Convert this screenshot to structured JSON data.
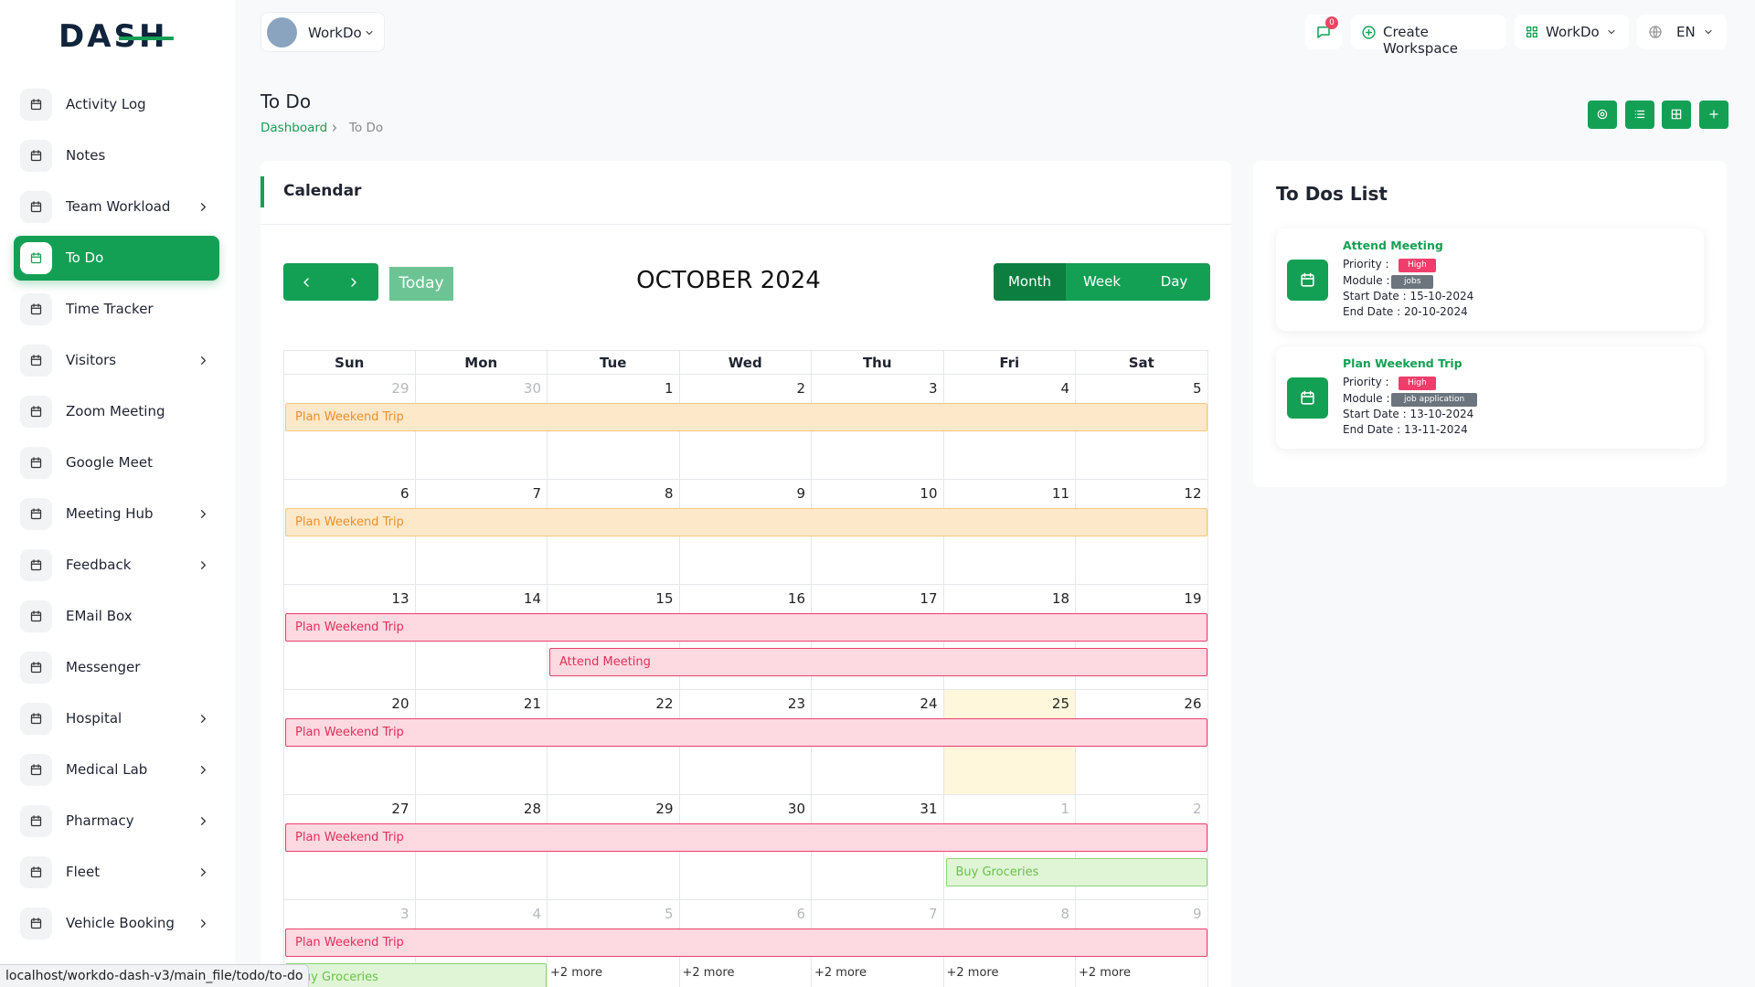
{
  "brand": "DASH",
  "sidebar": [
    {
      "label": "Activity Log",
      "has_children": false
    },
    {
      "label": "Notes",
      "has_children": false
    },
    {
      "label": "Team Workload",
      "has_children": true
    },
    {
      "label": "To Do",
      "has_children": false,
      "active": true
    },
    {
      "label": "Time Tracker",
      "has_children": false
    },
    {
      "label": "Visitors",
      "has_children": true
    },
    {
      "label": "Zoom Meeting",
      "has_children": false
    },
    {
      "label": "Google Meet",
      "has_children": false
    },
    {
      "label": "Meeting Hub",
      "has_children": true
    },
    {
      "label": "Feedback",
      "has_children": true
    },
    {
      "label": "EMail Box",
      "has_children": false
    },
    {
      "label": "Messenger",
      "has_children": false
    },
    {
      "label": "Hospital",
      "has_children": true
    },
    {
      "label": "Medical Lab",
      "has_children": true
    },
    {
      "label": "Pharmacy",
      "has_children": true
    },
    {
      "label": "Fleet",
      "has_children": true
    },
    {
      "label": "Vehicle Booking",
      "has_children": true
    }
  ],
  "header": {
    "workspace": "WorkDo",
    "notifications": "0",
    "create_workspace": "Create Workspace",
    "user_workspace": "WorkDo",
    "language": "EN"
  },
  "page": {
    "title": "To Do",
    "breadcrumb": [
      "Dashboard",
      "To Do"
    ]
  },
  "calendar": {
    "title": "Calendar",
    "today": "Today",
    "month": "OCTOBER 2024",
    "views": [
      "Month",
      "Week",
      "Day"
    ],
    "active_view": 0,
    "weekdays": [
      "Sun",
      "Mon",
      "Tue",
      "Wed",
      "Thu",
      "Fri",
      "Sat"
    ],
    "weeks": [
      {
        "days": [
          29,
          30,
          1,
          2,
          3,
          4,
          5
        ],
        "other": [
          true,
          true,
          false,
          false,
          false,
          false,
          false
        ],
        "events": [
          {
            "label": "Plan Weekend Trip",
            "span": [
              0,
              6
            ],
            "kind": "orange"
          }
        ]
      },
      {
        "days": [
          6,
          7,
          8,
          9,
          10,
          11,
          12
        ],
        "other": [
          false,
          false,
          false,
          false,
          false,
          false,
          false
        ],
        "events": [
          {
            "label": "Plan Weekend Trip",
            "span": [
              0,
              6
            ],
            "kind": "orange"
          }
        ]
      },
      {
        "days": [
          13,
          14,
          15,
          16,
          17,
          18,
          19
        ],
        "other": [
          false,
          false,
          false,
          false,
          false,
          false,
          false
        ],
        "events": [
          {
            "label": "Plan Weekend Trip",
            "span": [
              0,
              6
            ],
            "kind": "pink"
          },
          {
            "label": "Attend Meeting",
            "span": [
              2,
              6
            ],
            "kind": "pink"
          }
        ]
      },
      {
        "days": [
          20,
          21,
          22,
          23,
          24,
          25,
          26
        ],
        "other": [
          false,
          false,
          false,
          false,
          false,
          false,
          false
        ],
        "today": 5,
        "events": [
          {
            "label": "Plan Weekend Trip",
            "span": [
              0,
              6
            ],
            "kind": "pink"
          }
        ]
      },
      {
        "days": [
          27,
          28,
          29,
          30,
          31,
          1,
          2
        ],
        "other": [
          false,
          false,
          false,
          false,
          false,
          true,
          true
        ],
        "events": [
          {
            "label": "Plan Weekend Trip",
            "span": [
              0,
              6
            ],
            "kind": "pink"
          },
          {
            "label": "Buy Groceries",
            "span": [
              5,
              6
            ],
            "kind": "green"
          }
        ]
      },
      {
        "days": [
          3,
          4,
          5,
          6,
          7,
          8,
          9
        ],
        "other": [
          true,
          true,
          true,
          true,
          true,
          true,
          true
        ],
        "events": [
          {
            "label": "Plan Weekend Trip",
            "span": [
              0,
              6
            ],
            "kind": "pink"
          },
          {
            "label": "Buy Groceries",
            "span": [
              0,
              1
            ],
            "kind": "green"
          }
        ],
        "more": [
          null,
          null,
          "+2 more",
          "+2 more",
          "+2 more",
          "+2 more",
          "+2 more"
        ]
      }
    ]
  },
  "todo_list": {
    "title": "To Dos List",
    "items": [
      {
        "title": "Attend Meeting",
        "priority_label": "Priority :",
        "priority": "High",
        "module_label": "Module :",
        "module": "jobs",
        "start": "Start Date : 15-10-2024",
        "end": "End Date : 20-10-2024"
      },
      {
        "title": "Plan Weekend Trip",
        "priority_label": "Priority :",
        "priority": "High",
        "module_label": "Module :",
        "module": "job application",
        "start": "Start Date : 13-10-2024",
        "end": "End Date : 13-11-2024"
      }
    ]
  },
  "status_url": "localhost/workdo-dash-v3/main_file/todo/to-do"
}
